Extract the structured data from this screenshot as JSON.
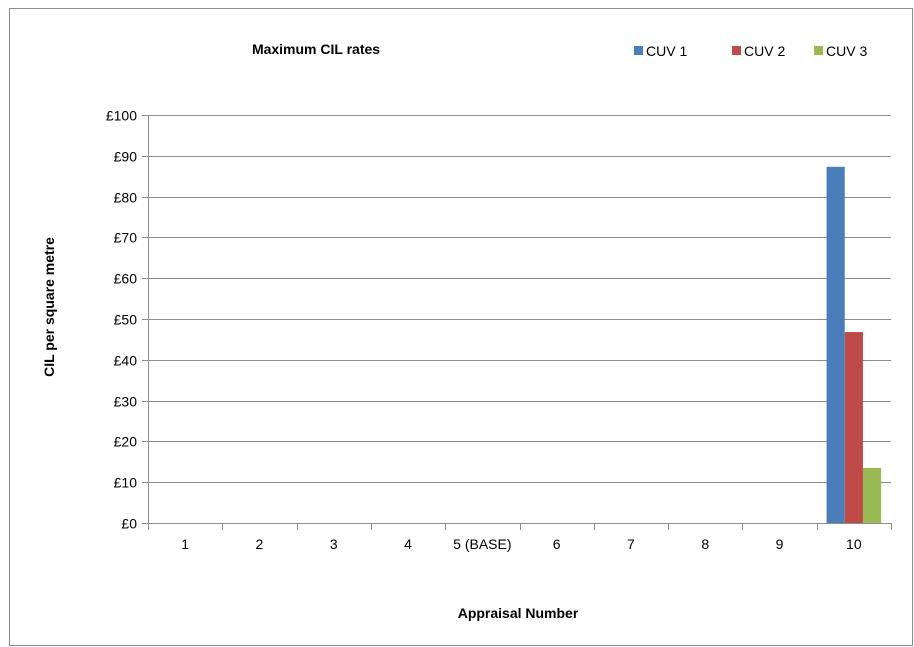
{
  "chart_data": {
    "type": "bar",
    "title": "Maximum CIL rates",
    "xlabel": "Appraisal Number",
    "ylabel": "CIL per square metre",
    "categories": [
      "1",
      "2",
      "3",
      "4",
      "5 (BASE)",
      "6",
      "7",
      "8",
      "9",
      "10"
    ],
    "ylim": [
      0,
      100
    ],
    "yticks": [
      0,
      10,
      20,
      30,
      40,
      50,
      60,
      70,
      80,
      90,
      100
    ],
    "ytick_prefix": "£",
    "grid": true,
    "legend_position": "top-right",
    "series": [
      {
        "name": "CUV 1",
        "color": "#4a7ebb",
        "values": [
          0,
          0,
          0,
          0,
          0,
          0,
          0,
          0,
          0,
          87.3
        ]
      },
      {
        "name": "CUV 2",
        "color": "#be4b48",
        "values": [
          0,
          0,
          0,
          0,
          0,
          0,
          0,
          0,
          0,
          46.8
        ]
      },
      {
        "name": "CUV 3",
        "color": "#98b954",
        "values": [
          0,
          0,
          0,
          0,
          0,
          0,
          0,
          0,
          0,
          13.5
        ]
      }
    ]
  }
}
